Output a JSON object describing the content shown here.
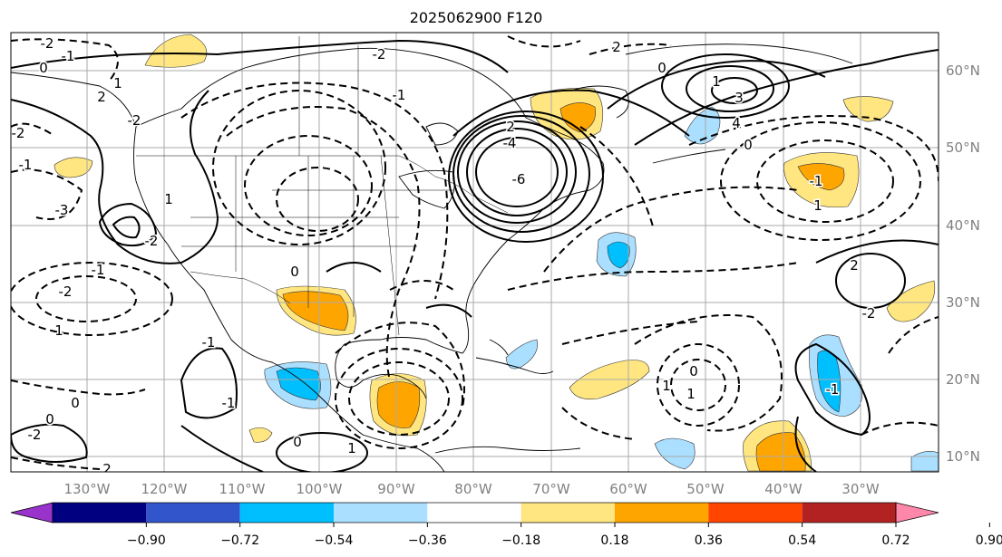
{
  "title": "2025062900 F120",
  "map": {
    "lon_ticks": [
      "130°W",
      "120°W",
      "110°W",
      "100°W",
      "90°W",
      "80°W",
      "70°W",
      "60°W",
      "50°W",
      "40°W",
      "30°W"
    ],
    "lat_ticks": [
      "60°N",
      "50°N",
      "40°N",
      "30°N",
      "20°N",
      "10°N"
    ],
    "contour_labels": [
      "-2",
      "-1",
      "0",
      "1",
      "2",
      "-2",
      "-2",
      "-1",
      "-3",
      "-2",
      "1",
      "0",
      "-1",
      "-2",
      "1",
      "-1",
      "-2",
      "2",
      "-4",
      "-6",
      "0",
      "1",
      "3",
      "4",
      "0",
      "2",
      "-1",
      "1",
      "2",
      "-2",
      "-1",
      "0",
      "1",
      "1",
      "-1",
      "0",
      "0",
      "1",
      "-1",
      "2",
      "-2",
      "0"
    ]
  },
  "colorbar": {
    "labels": [
      "−0.90",
      "−0.72",
      "−0.54",
      "−0.36",
      "−0.18",
      "0.18",
      "0.36",
      "0.54",
      "0.72",
      "0.90"
    ],
    "colors": [
      "#9933cc",
      "#000080",
      "#3355cc",
      "#00bfff",
      "#aadfff",
      "#ffffff",
      "#ffe680",
      "#ffa500",
      "#ff4500",
      "#b22222",
      "#ff88aa"
    ]
  }
}
